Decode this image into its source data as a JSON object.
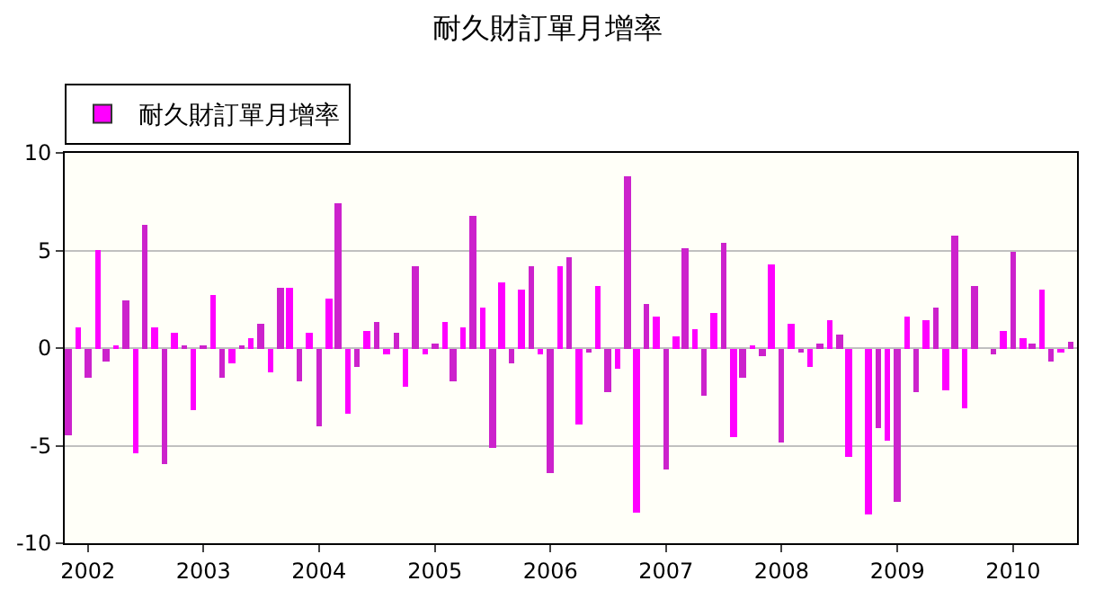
{
  "chart_data": {
    "type": "bar",
    "title": "耐久財訂單月增率",
    "x": [
      "2001-11",
      "2001-12",
      "2002-01",
      "2002-02",
      "2002-03",
      "2002-04",
      "2002-05",
      "2002-06",
      "2002-07",
      "2002-08",
      "2002-09",
      "2002-10",
      "2002-11",
      "2002-12",
      "2003-01",
      "2003-02",
      "2003-03",
      "2003-04",
      "2003-05",
      "2003-06",
      "2003-07",
      "2003-08",
      "2003-09",
      "2003-10",
      "2003-11",
      "2003-12",
      "2004-01",
      "2004-02",
      "2004-03",
      "2004-04",
      "2004-05",
      "2004-06",
      "2004-07",
      "2004-08",
      "2004-09",
      "2004-10",
      "2004-11",
      "2004-12",
      "2005-01",
      "2005-02",
      "2005-03",
      "2005-04",
      "2005-05",
      "2005-06",
      "2005-07",
      "2005-08",
      "2005-09",
      "2005-10",
      "2005-11",
      "2005-12",
      "2006-01",
      "2006-02",
      "2006-03",
      "2006-04",
      "2006-05",
      "2006-06",
      "2006-07",
      "2006-08",
      "2006-09",
      "2006-10",
      "2006-11",
      "2006-12",
      "2007-01",
      "2007-02",
      "2007-03",
      "2007-04",
      "2007-05",
      "2007-06",
      "2007-07",
      "2007-08",
      "2007-09",
      "2007-10",
      "2007-11",
      "2007-12",
      "2008-01",
      "2008-02",
      "2008-03",
      "2008-04",
      "2008-05",
      "2008-06",
      "2008-07",
      "2008-08",
      "2008-09",
      "2008-10",
      "2008-11",
      "2008-12",
      "2009-01",
      "2009-02",
      "2009-03",
      "2009-04",
      "2009-05",
      "2009-06",
      "2009-07",
      "2009-08",
      "2009-09",
      "2009-10",
      "2009-11",
      "2009-12",
      "2010-01",
      "2010-02",
      "2010-03",
      "2010-04",
      "2010-05",
      "2010-06",
      "2010-07"
    ],
    "series": [
      {
        "name": "耐久財訂單月增率",
        "color": "#ff00ff",
        "values": [
          -4.5,
          1.1,
          -1.5,
          5.0,
          -0.7,
          0.1,
          2.4,
          -5.4,
          6.3,
          1.1,
          -5.9,
          0.8,
          0.1,
          -3.2,
          0.1,
          2.7,
          -1.5,
          -0.8,
          0.1,
          0.5,
          1.2,
          -1.2,
          3.1,
          3.1,
          -1.7,
          0.8,
          -4.0,
          2.5,
          7.4,
          -3.4,
          -1.0,
          0.9,
          1.3,
          -0.3,
          0.8,
          -2.0,
          4.2,
          -0.3,
          0.2,
          1.3,
          -1.7,
          1.1,
          6.8,
          2.1,
          -5.1,
          3.4,
          -0.8,
          3.0,
          4.2,
          -0.3,
          -6.4,
          4.2,
          4.7,
          -3.9,
          -0.2,
          3.2,
          -2.3,
          -1.1,
          8.8,
          -8.4,
          2.3,
          1.6,
          -6.2,
          0.6,
          5.1,
          1.0,
          -2.4,
          1.8,
          5.4,
          -4.6,
          -1.5,
          0.1,
          -0.4,
          4.3,
          -4.8,
          1.2,
          -0.2,
          -1.0,
          0.2,
          1.4,
          0.7,
          -5.6,
          0.0,
          -8.5,
          -4.1,
          -4.7,
          -7.9,
          1.6,
          -2.3,
          1.4,
          2.1,
          -2.2,
          5.8,
          -3.1,
          3.2,
          0.0,
          -0.3,
          0.9,
          4.9,
          0.5,
          0.2,
          3.0,
          -0.7,
          -0.2,
          0.3
        ],
        "colors": [
          "#cc22cc",
          "#ff00ff",
          "#cc22cc",
          "#ff00ff",
          "#cc22cc",
          "#ff00ff",
          "#cc22cc",
          "#ff00ff",
          "#cc22cc",
          "#ff00ff",
          "#cc22cc",
          "#ff00ff",
          "#cc22cc",
          "#ff00ff",
          "#cc22cc",
          "#ff00ff",
          "#cc22cc",
          "#ff00ff",
          "#cc22cc",
          "#ff00ff",
          "#cc22cc",
          "#ff00ff",
          "#cc22cc",
          "#ff00ff",
          "#cc22cc",
          "#ff00ff",
          "#cc22cc",
          "#ff00ff",
          "#cc22cc",
          "#ff00ff",
          "#cc22cc",
          "#ff00ff",
          "#cc22cc",
          "#ff00ff",
          "#cc22cc",
          "#ff00ff",
          "#cc22cc",
          "#ff00ff",
          "#cc22cc",
          "#ff00ff",
          "#cc22cc",
          "#ff00ff",
          "#cc22cc",
          "#ff00ff",
          "#cc22cc",
          "#ff00ff",
          "#cc22cc",
          "#ff00ff",
          "#cc22cc",
          "#ff00ff",
          "#cc22cc",
          "#ff00ff",
          "#cc22cc",
          "#ff00ff",
          "#cc22cc",
          "#ff00ff",
          "#cc22cc",
          "#ff00ff",
          "#cc22cc",
          "#ff00ff",
          "#cc22cc",
          "#ff00ff",
          "#cc22cc",
          "#ff00ff",
          "#cc22cc",
          "#ff00ff",
          "#cc22cc",
          "#ff00ff",
          "#cc22cc",
          "#ff00ff",
          "#cc22cc",
          "#ff00ff",
          "#cc22cc",
          "#ff00ff",
          "#cc22cc",
          "#ff00ff",
          "#cc22cc",
          "#ff00ff",
          "#cc22cc",
          "#ff00ff",
          "#cc22cc",
          "#ff00ff",
          "#cc22cc",
          "#ff00ff",
          "#cc22cc",
          "#ff00ff",
          "#cc22cc",
          "#ff00ff",
          "#cc22cc",
          "#ff00ff",
          "#cc22cc",
          "#ff00ff",
          "#cc22cc",
          "#ff00ff",
          "#cc22cc",
          "#ff00ff",
          "#cc22cc",
          "#ff00ff",
          "#cc22cc",
          "#ff00ff",
          "#cc22cc",
          "#ff00ff",
          "#cc22cc",
          "#ff00ff",
          "#cc22cc"
        ]
      }
    ],
    "xlim": [
      "2001-10-20",
      "2010-07-22"
    ],
    "xticks": [
      "2002",
      "2003",
      "2004",
      "2005",
      "2006",
      "2007",
      "2008",
      "2009",
      "2010"
    ],
    "ylim": [
      -10,
      10
    ],
    "yticks": [
      -10,
      -5,
      0,
      5,
      10
    ],
    "grid": "y",
    "legend": "top left"
  }
}
